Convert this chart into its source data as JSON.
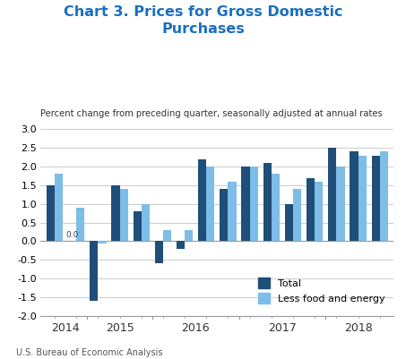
{
  "title": "Chart 3. Prices for Gross Domestic\nPurchases",
  "subtitle": "Percent change from preceding quarter, seasonally adjusted at annual rates",
  "source": "U.S. Bureau of Economic Analysis",
  "ylim": [
    -2.0,
    3.0
  ],
  "yticks": [
    -2.0,
    -1.5,
    -1.0,
    -0.5,
    0.0,
    0.5,
    1.0,
    1.5,
    2.0,
    2.5,
    3.0
  ],
  "bar_width": 0.38,
  "title_color": "#1A6FBF",
  "total_color": "#1F4E79",
  "less_color": "#7DBDE8",
  "total_values": [
    1.5,
    0.0,
    -1.6,
    1.5,
    0.8,
    -0.6,
    -0.2,
    2.2,
    1.4,
    2.0,
    2.1,
    1.0,
    1.7,
    2.5,
    2.4,
    2.3
  ],
  "less_values": [
    1.8,
    0.9,
    -0.05,
    1.4,
    1.0,
    0.3,
    0.3,
    2.0,
    1.6,
    2.0,
    1.8,
    1.4,
    1.6,
    2.0,
    2.3,
    2.4
  ],
  "annotation_val": "0.0",
  "annotation_idx": 1,
  "year_groups": [
    {
      "label": "2014",
      "indices": [
        0,
        1
      ]
    },
    {
      "label": "2015",
      "indices": [
        2,
        3,
        4
      ]
    },
    {
      "label": "2016",
      "indices": [
        5,
        6,
        7,
        8
      ]
    },
    {
      "label": "2017",
      "indices": [
        9,
        10,
        11,
        12
      ]
    },
    {
      "label": "2018",
      "indices": [
        13,
        14,
        15
      ]
    }
  ],
  "year_boundaries": [
    1.5,
    4.5,
    8.5,
    12.5
  ],
  "background_color": "#ffffff",
  "grid_color": "#cccccc",
  "axis_color": "#999999"
}
